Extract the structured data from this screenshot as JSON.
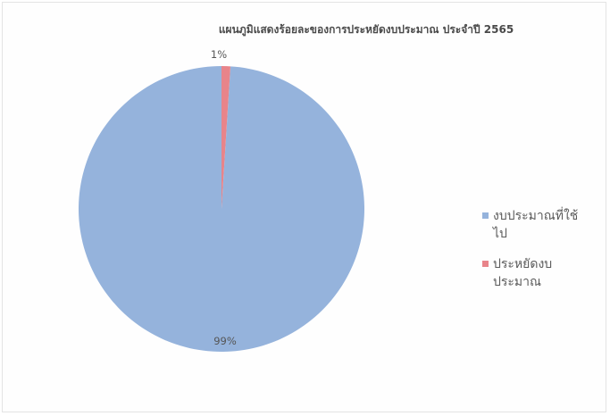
{
  "chart_data": {
    "type": "pie",
    "title": "แผนภูมิแสดงร้อยละของการประหยัดงบประมาณ ประจำปี  2565",
    "slices": [
      {
        "name": "งบประมาณที่ใช้ไป",
        "value": 99,
        "label": "99%",
        "color": "#95b3dc"
      },
      {
        "name": "ประหยัดงบประมาณ",
        "value": 1,
        "label": "1%",
        "color": "#e8848a"
      }
    ],
    "legend_position": "right"
  },
  "legend": {
    "items": [
      {
        "label": "งบประมาณที่ใช้ไป",
        "color": "#95b3dc"
      },
      {
        "label": "ประหยัดงบประมาณ",
        "color": "#e8848a"
      }
    ]
  }
}
